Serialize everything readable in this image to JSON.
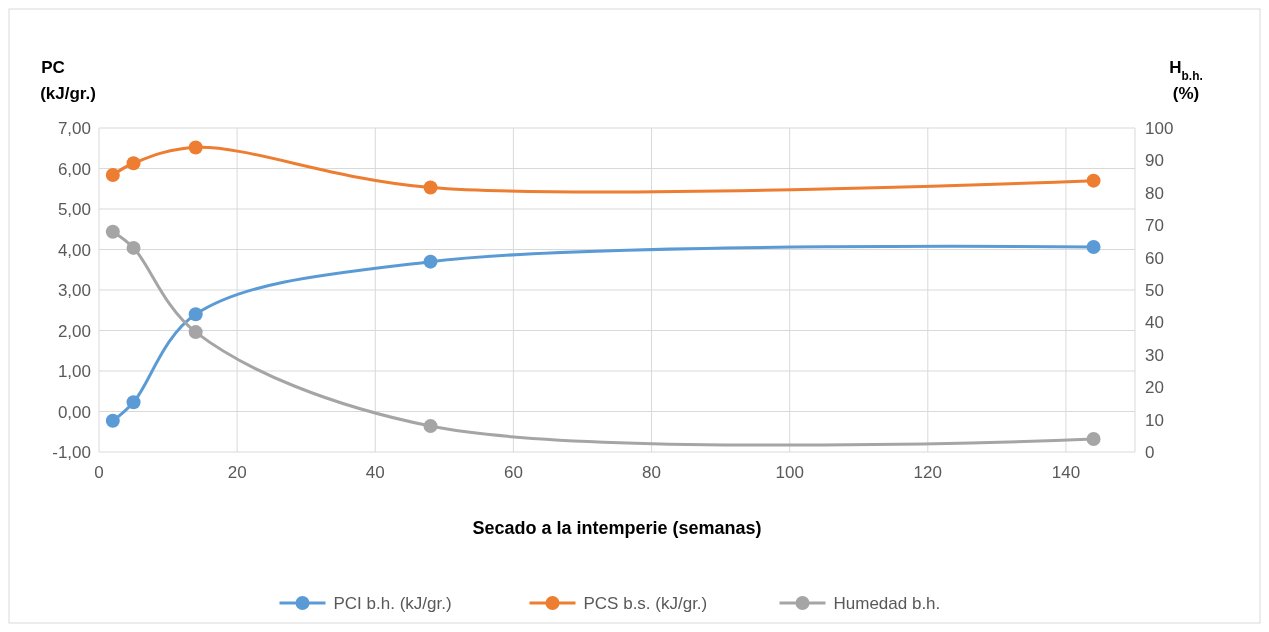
{
  "chart_data": {
    "type": "line",
    "xlabel": "Secado a la intemperie (semanas)",
    "ylabel": "PC (kJ/gr.)",
    "y2label": "H$_{b.h.}$ (%)",
    "x": [
      2,
      5,
      14,
      48,
      144
    ],
    "series": [
      {
        "name": "PCI b.h. (kJ/gr.)",
        "color": "#5b9bd5",
        "values": [
          -0.23,
          0.23,
          2.4,
          3.7,
          4.06
        ]
      },
      {
        "name": "PCS b.s. (kJ/gr.)",
        "color": "#ed7d31",
        "values": [
          5.84,
          6.13,
          6.52,
          5.53,
          5.7
        ]
      },
      {
        "name": "Humedad b.h.",
        "color": "#a5a5a5",
        "axis": "y2",
        "values": [
          68,
          63,
          37,
          8,
          4
        ]
      }
    ],
    "xlim": [
      0,
      150
    ],
    "xticks": [
      0,
      20,
      40,
      60,
      80,
      100,
      120,
      140
    ],
    "ylim": [
      -1,
      7
    ],
    "yticks": [
      {
        "value": -1,
        "label": "-1,00"
      },
      {
        "value": 0,
        "label": "0,00"
      },
      {
        "value": 1,
        "label": "1,00"
      },
      {
        "value": 2,
        "label": "2,00"
      },
      {
        "value": 3,
        "label": "3,00"
      },
      {
        "value": 4,
        "label": "4,00"
      },
      {
        "value": 5,
        "label": "5,00"
      },
      {
        "value": 6,
        "label": "6,00"
      },
      {
        "value": 7,
        "label": "7,00"
      }
    ],
    "y2lim": [
      0,
      100
    ],
    "y2ticks": [
      0,
      10,
      20,
      30,
      40,
      50,
      60,
      70,
      80,
      90,
      100
    ],
    "grid": true,
    "legend": "bottom",
    "marker": "circle",
    "line_style": "solid"
  }
}
